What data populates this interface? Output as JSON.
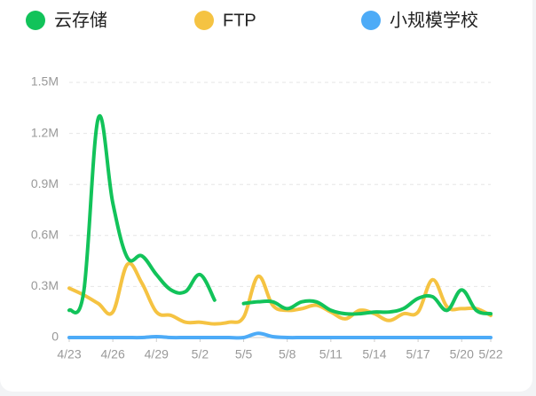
{
  "chart_data": {
    "type": "line",
    "categories": [
      "4/23",
      null,
      null,
      "4/26",
      null,
      null,
      "4/29",
      null,
      null,
      "5/2",
      null,
      null,
      "5/5",
      null,
      null,
      "5/8",
      null,
      null,
      "5/11",
      null,
      null,
      "5/14",
      null,
      null,
      "5/17",
      null,
      null,
      "5/20",
      null,
      "5/22"
    ],
    "series": [
      {
        "name": "云存储",
        "color": "#12c35a",
        "values": [
          160000,
          270000,
          1290000,
          790000,
          470000,
          480000,
          370000,
          280000,
          270000,
          370000,
          220000,
          null,
          200000,
          210000,
          210000,
          170000,
          210000,
          210000,
          160000,
          140000,
          140000,
          150000,
          150000,
          170000,
          230000,
          240000,
          160000,
          280000,
          160000,
          140000
        ]
      },
      {
        "name": "FTP",
        "color": "#f5c342",
        "values": [
          290000,
          250000,
          200000,
          150000,
          430000,
          320000,
          150000,
          130000,
          90000,
          90000,
          80000,
          90000,
          120000,
          360000,
          190000,
          160000,
          170000,
          190000,
          150000,
          110000,
          160000,
          140000,
          100000,
          140000,
          150000,
          340000,
          180000,
          170000,
          170000,
          130000
        ]
      },
      {
        "name": "小规模学校",
        "color": "#4dabf7",
        "values": [
          0,
          0,
          0,
          0,
          0,
          0,
          5000,
          0,
          0,
          0,
          0,
          0,
          0,
          25000,
          5000,
          0,
          0,
          0,
          0,
          0,
          0,
          0,
          0,
          0,
          0,
          0,
          0,
          0,
          0,
          0
        ]
      }
    ],
    "ylim": [
      0,
      1500000
    ],
    "yticks": [
      0,
      {
        "value": 300000,
        "label": "0.3M"
      },
      {
        "value": 600000,
        "label": "0.6M"
      },
      {
        "value": 900000,
        "label": "0.9M"
      },
      {
        "value": 1200000,
        "label": "1.2M"
      },
      {
        "value": 1500000,
        "label": "1.5M"
      }
    ],
    "grid": true,
    "legend": "top"
  }
}
